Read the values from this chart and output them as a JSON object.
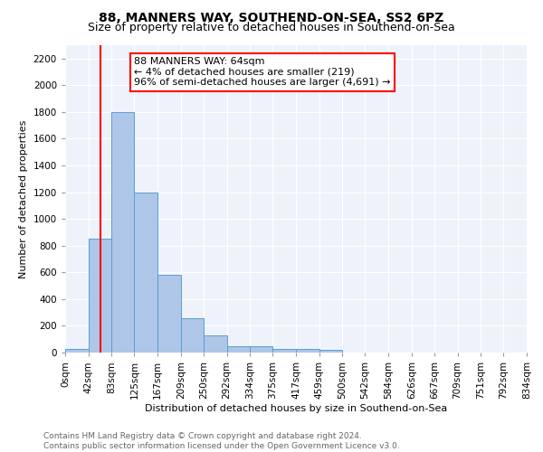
{
  "title": "88, MANNERS WAY, SOUTHEND-ON-SEA, SS2 6PZ",
  "subtitle": "Size of property relative to detached houses in Southend-on-Sea",
  "xlabel": "Distribution of detached houses by size in Southend-on-Sea",
  "ylabel": "Number of detached properties",
  "bar_labels": [
    "0sqm",
    "42sqm",
    "83sqm",
    "125sqm",
    "167sqm",
    "209sqm",
    "250sqm",
    "292sqm",
    "334sqm",
    "375sqm",
    "417sqm",
    "459sqm",
    "500sqm",
    "542sqm",
    "584sqm",
    "626sqm",
    "667sqm",
    "709sqm",
    "751sqm",
    "792sqm",
    "834sqm"
  ],
  "bar_values": [
    30,
    850,
    1800,
    1200,
    585,
    255,
    130,
    45,
    45,
    30,
    25,
    18,
    0,
    0,
    0,
    0,
    0,
    0,
    0,
    0,
    0
  ],
  "bar_color": "#aec6e8",
  "bar_edge_color": "#5a9fd4",
  "ylim": [
    0,
    2300
  ],
  "yticks": [
    0,
    200,
    400,
    600,
    800,
    1000,
    1200,
    1400,
    1600,
    1800,
    2000,
    2200
  ],
  "bin_edges": [
    0,
    42,
    83,
    125,
    167,
    209,
    250,
    292,
    334,
    375,
    417,
    459,
    500,
    542,
    584,
    626,
    667,
    709,
    751,
    792,
    834
  ],
  "vline_x": 64,
  "annotation_text": "88 MANNERS WAY: 64sqm\n← 4% of detached houses are smaller (219)\n96% of semi-detached houses are larger (4,691) →",
  "annotation_box_color": "white",
  "annotation_box_edge_color": "red",
  "vline_color": "red",
  "background_color": "#eef3fb",
  "footer_line1": "Contains HM Land Registry data © Crown copyright and database right 2024.",
  "footer_line2": "Contains public sector information licensed under the Open Government Licence v3.0.",
  "title_fontsize": 10,
  "subtitle_fontsize": 9,
  "annotation_fontsize": 8,
  "axis_fontsize": 8,
  "tick_fontsize": 7.5
}
